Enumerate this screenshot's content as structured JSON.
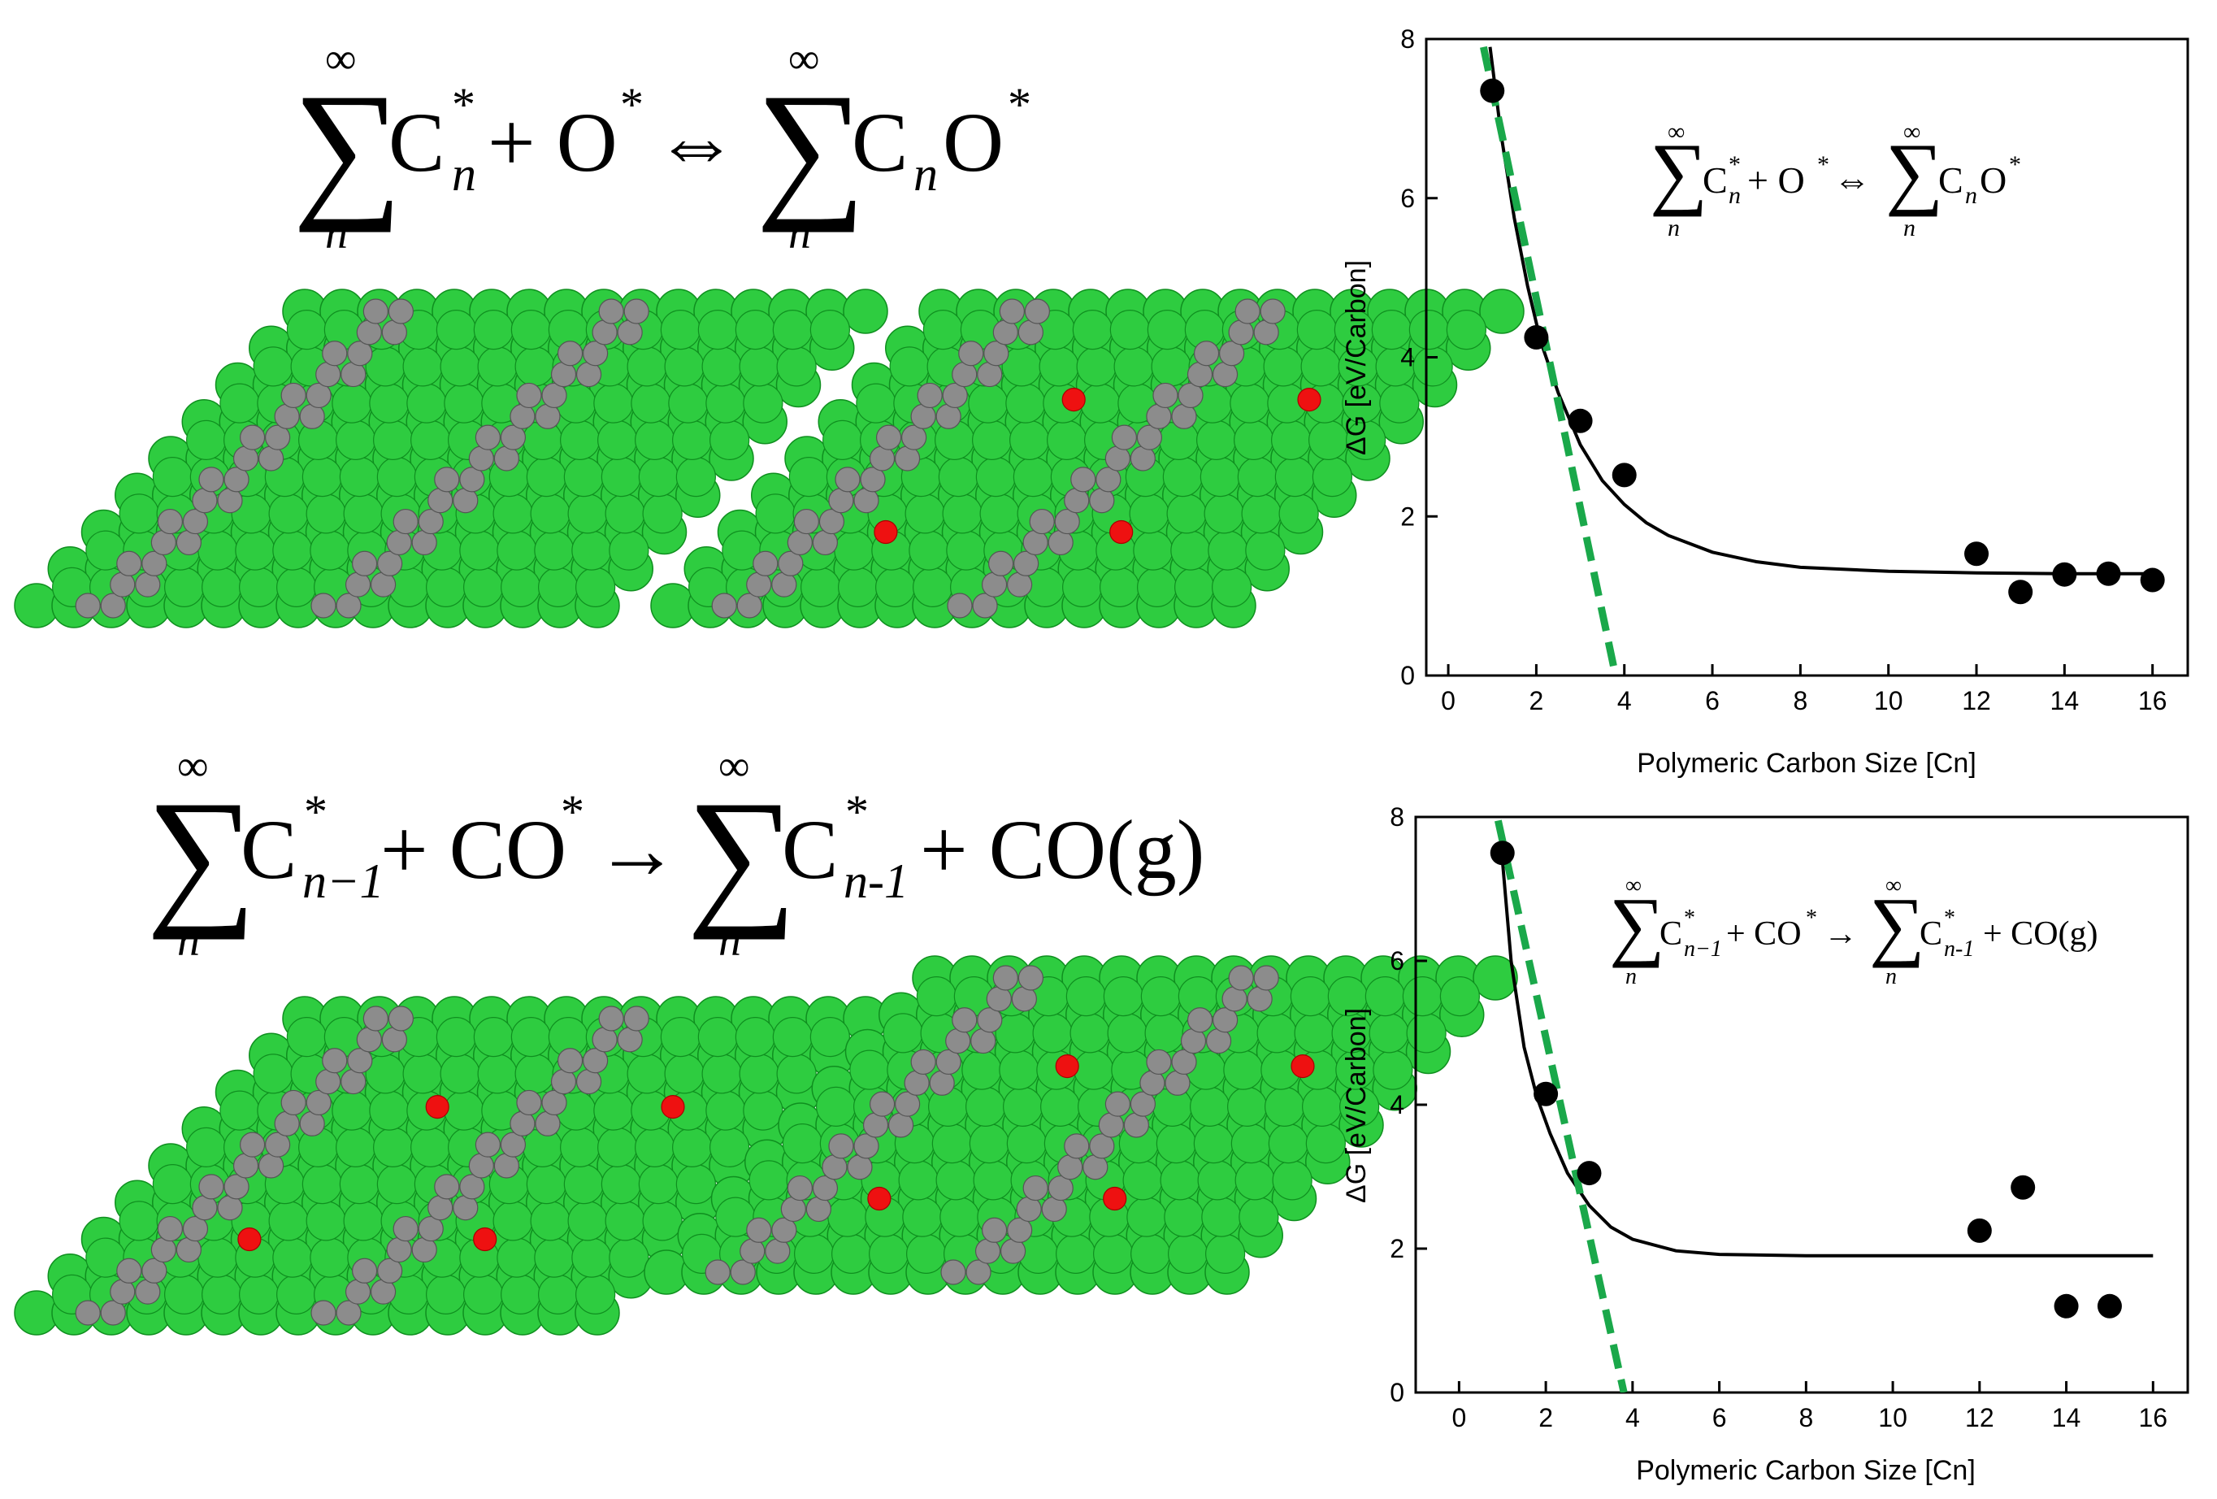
{
  "colors": {
    "copper": "#2ecc40",
    "copper_edge": "#0f8f1f",
    "carbon": "#8c8c8c",
    "carbon_edge": "#555555",
    "oxygen": "#ee1111",
    "fit_line": "#000000",
    "linear_line": "#1aa84a",
    "marker": "#000000"
  },
  "equations": {
    "oxidation": {
      "sum_upper": "∞",
      "sum_lower": "n",
      "lhs": "C",
      "lhs_sup": "*",
      "lhs_sub": "n",
      "plus_term": "+ O",
      "plus_sup": "*",
      "arrow": "⇔",
      "rhs": "C",
      "rhs_sub": "n",
      "rhs_tail": "O",
      "rhs_sup": "*"
    },
    "desorption": {
      "sum_upper": "∞",
      "sum_lower": "n",
      "lhs": "C",
      "lhs_sup": "*",
      "lhs_sub": "n−1",
      "plus_term": "+ CO",
      "plus_sup": "*",
      "arrow": "→",
      "rhs": "C",
      "rhs_sup": "*",
      "rhs_sub": "n-1",
      "rhs_tail": "+ CO(g)"
    }
  },
  "slabs": [
    {
      "name": "slab-top-left-carbon-only",
      "oxygen": false,
      "oxygen_labels": "none"
    },
    {
      "name": "slab-top-right-carbon-oxygen",
      "oxygen": true
    },
    {
      "name": "slab-bottom-left-carbon-co",
      "oxygen": true
    },
    {
      "name": "slab-bottom-right-carbon-oxygen",
      "oxygen": true
    }
  ],
  "chart_data": [
    {
      "type": "scatter",
      "title": "",
      "inset_equation": "oxidation",
      "xlabel": "Polymeric Carbon Size [Cn]",
      "ylabel": "ΔG [eV/Carbon]",
      "xlim": [
        -0.5,
        16.8
      ],
      "ylim": [
        0,
        8
      ],
      "xticks": [
        0,
        2,
        4,
        6,
        8,
        10,
        12,
        14,
        16
      ],
      "yticks": [
        0,
        2,
        4,
        6,
        8
      ],
      "points": {
        "x": [
          1,
          2,
          3,
          4,
          12,
          13,
          14,
          15,
          16
        ],
        "y": [
          7.35,
          4.25,
          3.2,
          2.52,
          1.53,
          1.05,
          1.27,
          1.28,
          1.2
        ]
      },
      "fit_curve": {
        "label": "exponential fit",
        "x": [
          0.95,
          1.2,
          1.5,
          1.8,
          2.1,
          2.5,
          3.0,
          3.5,
          4.0,
          4.5,
          5.0,
          6.0,
          7.0,
          8.0,
          10.0,
          12.0,
          14.0,
          16.0
        ],
        "y": [
          7.9,
          6.8,
          5.75,
          4.9,
          4.2,
          3.55,
          2.9,
          2.45,
          2.15,
          1.92,
          1.76,
          1.55,
          1.43,
          1.36,
          1.31,
          1.29,
          1.28,
          1.28
        ]
      },
      "linear_line": {
        "label": "linear trend (dashed)",
        "x": [
          0.8,
          3.8
        ],
        "y": [
          7.9,
          0
        ]
      }
    },
    {
      "type": "scatter",
      "title": "",
      "inset_equation": "desorption",
      "xlabel": "Polymeric Carbon Size [Cn]",
      "ylabel": "ΔG [eV/Carbon]",
      "xlim": [
        -1,
        16.8
      ],
      "ylim": [
        0,
        8
      ],
      "xticks": [
        0,
        2,
        4,
        6,
        8,
        10,
        12,
        14,
        16
      ],
      "yticks": [
        0,
        2,
        4,
        6,
        8
      ],
      "points": {
        "x": [
          1,
          2,
          3,
          12,
          13,
          14,
          15
        ],
        "y": [
          7.5,
          4.15,
          3.05,
          2.25,
          2.85,
          1.2,
          1.2
        ]
      },
      "fit_curve": {
        "label": "exponential fit",
        "x": [
          1.0,
          1.2,
          1.5,
          1.8,
          2.1,
          2.5,
          3.0,
          3.5,
          4.0,
          5.0,
          6.0,
          8.0,
          10.0,
          12.0,
          14.0,
          16.0
        ],
        "y": [
          7.4,
          6.0,
          4.8,
          4.1,
          3.6,
          3.05,
          2.6,
          2.3,
          2.13,
          1.97,
          1.92,
          1.9,
          1.9,
          1.9,
          1.9,
          1.9
        ]
      },
      "linear_line": {
        "label": "linear trend (dashed)",
        "x": [
          0.9,
          3.8
        ],
        "y": [
          7.95,
          0
        ]
      }
    }
  ]
}
